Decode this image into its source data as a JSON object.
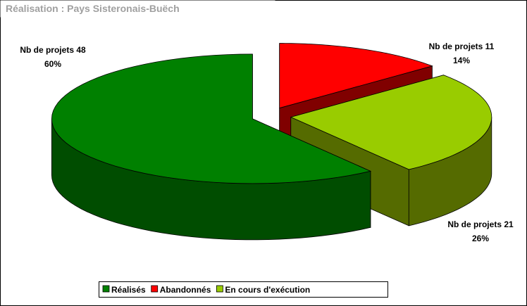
{
  "chart_data": {
    "type": "pie3d",
    "title": "Réalisation : Pays Sisteronais-Buëch",
    "categories": [
      "Réalisés",
      "Abandonnés",
      "En cours d'exécution"
    ],
    "values": [
      48,
      11,
      21
    ],
    "value_labels": [
      "Nb de projets 48",
      "Nb de projets 11",
      "Nb de projets 21"
    ],
    "percentages": [
      60,
      14,
      26
    ],
    "percentage_labels": [
      "60%",
      "14%",
      "26%"
    ],
    "colors": [
      "#008000",
      "#ff0000",
      "#99cc00"
    ],
    "side_colors": [
      "#004d00",
      "#800000",
      "#556b00"
    ],
    "legend": "bottom"
  }
}
